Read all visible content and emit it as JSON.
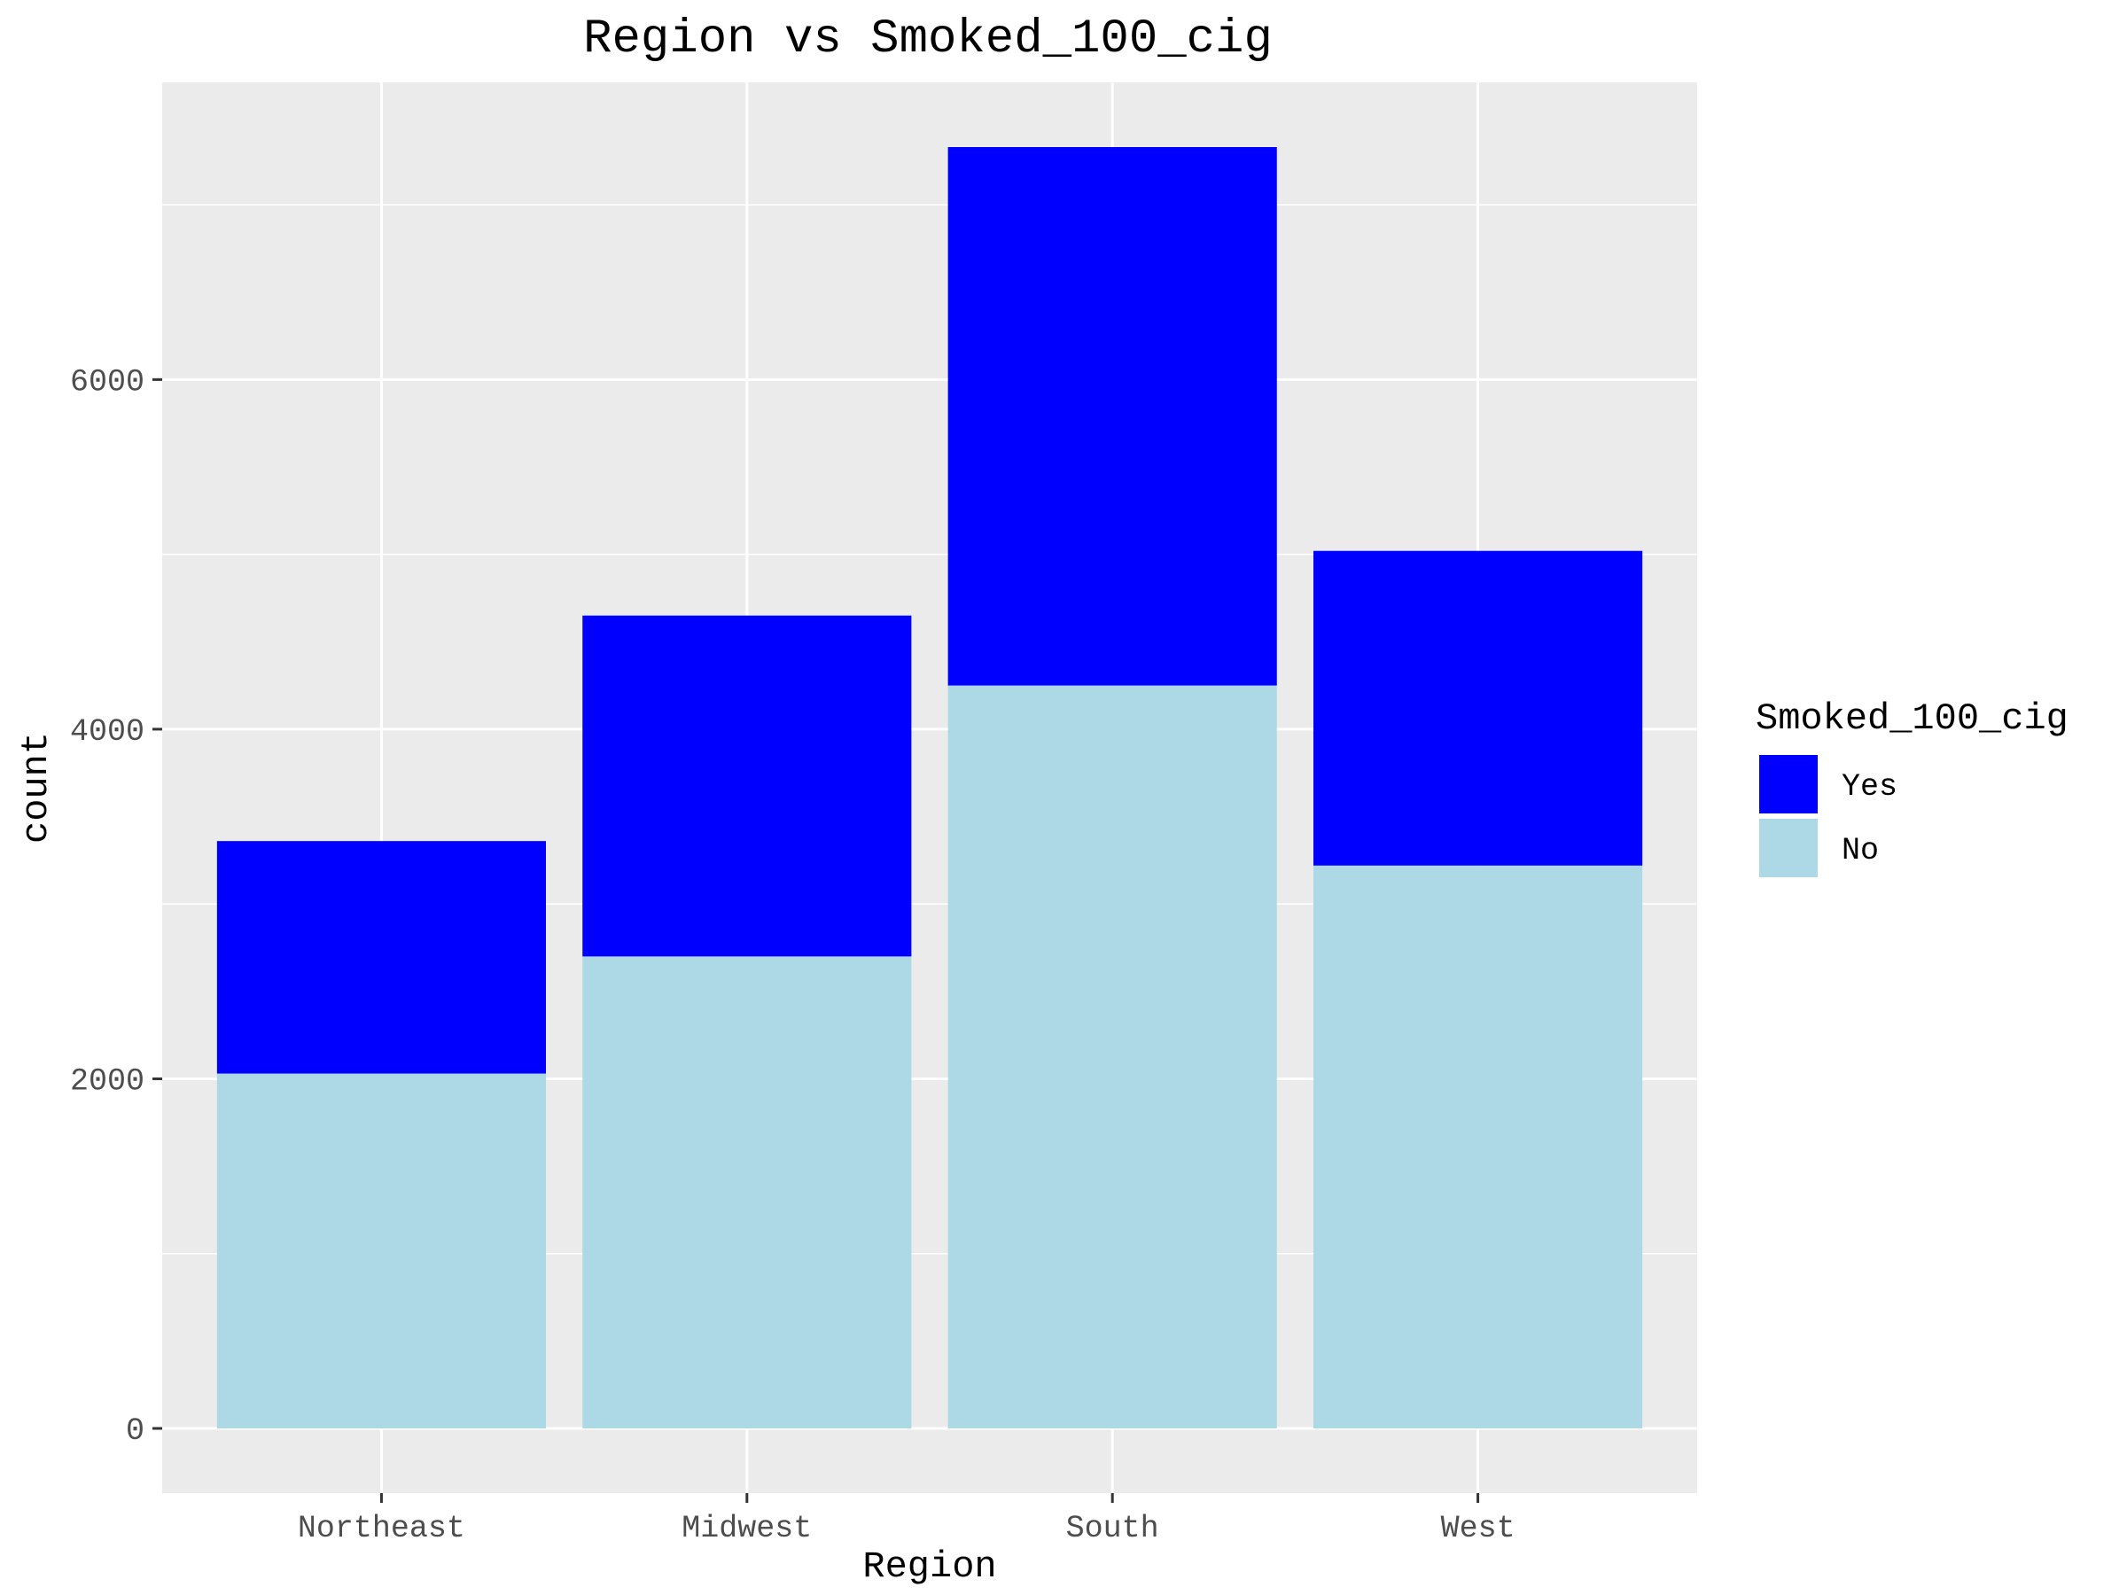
{
  "chart_data": {
    "type": "bar",
    "stacked": true,
    "title": "Region vs Smoked_100_cig",
    "xlabel": "Region",
    "ylabel": "count",
    "categories": [
      "Northeast",
      "Midwest",
      "South",
      "West"
    ],
    "series": [
      {
        "name": "No",
        "color": "#add8e6",
        "values": [
          2030,
          2700,
          4250,
          3220
        ]
      },
      {
        "name": "Yes",
        "color": "#0000ff",
        "values": [
          1330,
          1950,
          3080,
          1800
        ]
      }
    ],
    "ylim": [
      -370,
      7700
    ],
    "yticks": [
      0,
      2000,
      4000,
      6000
    ],
    "grid": true,
    "legend": {
      "title": "Smoked_100_cig",
      "position": "right",
      "entries": [
        {
          "label": "Yes",
          "color": "#0000ff"
        },
        {
          "label": "No",
          "color": "#add8e6"
        }
      ]
    }
  }
}
